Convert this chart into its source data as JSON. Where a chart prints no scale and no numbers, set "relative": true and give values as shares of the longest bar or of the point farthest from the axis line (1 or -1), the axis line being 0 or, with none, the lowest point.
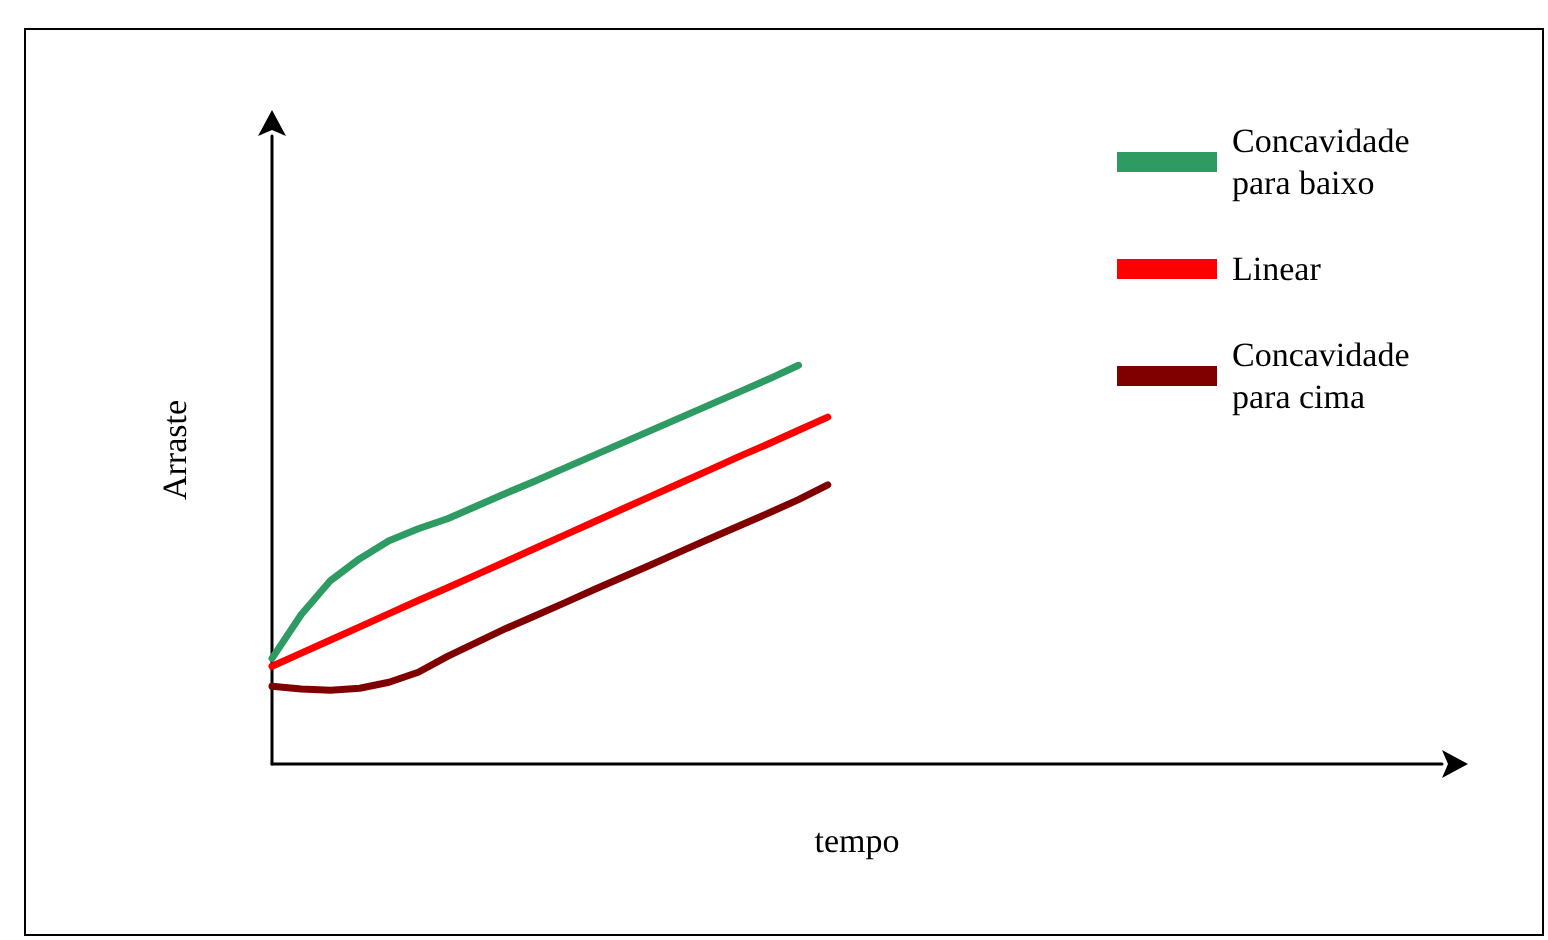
{
  "chart_data": {
    "type": "line",
    "relative": true,
    "xlabel": "tempo",
    "ylabel": "Arraste",
    "grid": false,
    "legend": "top right",
    "marker": "none",
    "line_style": "solid",
    "categories": [
      null,
      null,
      null,
      null,
      null,
      null,
      null,
      null,
      null,
      null,
      null,
      null,
      null,
      null,
      null,
      null,
      null,
      null,
      null,
      null,
      null,
      null,
      null,
      null,
      null,
      null,
      null,
      null,
      null,
      null,
      null,
      null,
      null,
      null,
      null,
      null,
      null,
      null,
      null,
      null,
      null
    ],
    "series": [
      {
        "name": "Concavidade para baixo",
        "color": "#2e9b62",
        "values": [
          0.265,
          0.375,
          0.46,
          0.515,
          0.56,
          0.59,
          0.615,
          0.647,
          0.679,
          0.71,
          0.742,
          0.774,
          0.806,
          0.838,
          0.87,
          0.902,
          0.934,
          0.966,
          1.0,
          null,
          null,
          null,
          null,
          null,
          null,
          null,
          null,
          null,
          null,
          null,
          null,
          null,
          null,
          null,
          null,
          null,
          null,
          null,
          null,
          null,
          null
        ]
      },
      {
        "name": "Linear",
        "color": "#ff0000",
        "values": [
          0.245,
          0.278,
          0.311,
          0.344,
          0.377,
          0.41,
          0.442,
          0.475,
          0.508,
          0.541,
          0.574,
          0.607,
          0.64,
          0.673,
          0.706,
          0.739,
          0.772,
          0.804,
          0.837,
          0.87,
          null,
          null,
          null,
          null,
          null,
          null,
          null,
          null,
          null,
          null,
          null,
          null,
          null,
          null,
          null,
          null,
          null,
          null,
          null,
          null,
          null
        ]
      },
      {
        "name": "Concavidade para cima",
        "color": "#800000",
        "values": [
          0.195,
          0.188,
          0.185,
          0.19,
          0.205,
          0.23,
          0.27,
          0.305,
          0.34,
          0.372,
          0.404,
          0.437,
          0.469,
          0.501,
          0.534,
          0.566,
          0.598,
          0.63,
          0.663,
          0.7,
          null,
          null,
          null,
          null,
          null,
          null,
          null,
          null,
          null,
          null,
          null,
          null,
          null,
          null,
          null,
          null,
          null,
          null,
          null,
          null,
          null
        ]
      }
    ]
  }
}
